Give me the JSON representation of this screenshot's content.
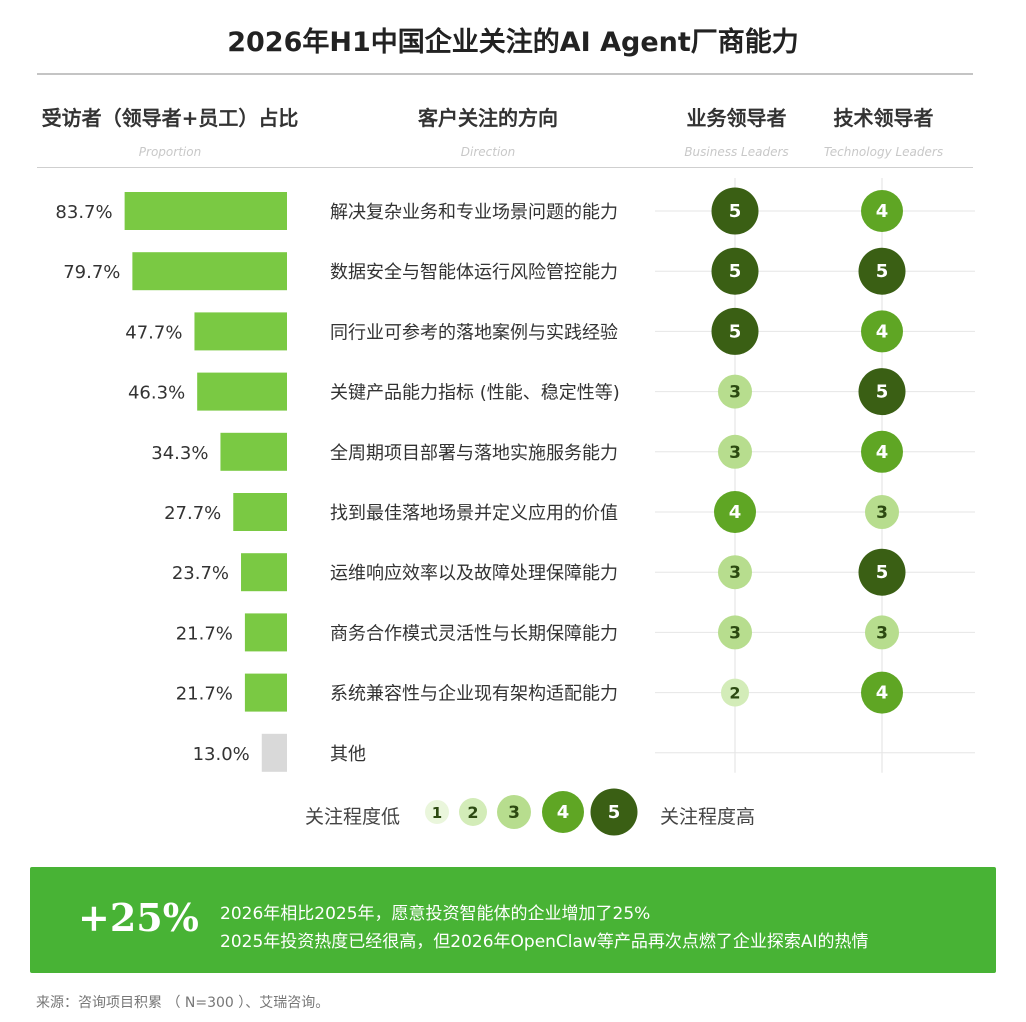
{
  "title": "2026年H1中国企业关注的AI Agent厂商能力",
  "headers": {
    "proportion": {
      "main": "受访者（领导者+员工）占比",
      "sub": "Proportion"
    },
    "direction": {
      "main": "客户关注的方向",
      "sub": "Direction"
    },
    "business": {
      "main": "业务领导者",
      "sub": "Business Leaders"
    },
    "technology": {
      "main": "技术领导者",
      "sub": "Technology Leaders"
    }
  },
  "chart_data": {
    "type": "bar",
    "orientation": "horizontal",
    "categories": [
      "解决复杂业务和专业场景问题的能力",
      "数据安全与智能体运行风险管控能力",
      "同行业可参考的落地案例与实践经验",
      "关键产品能力指标 (性能、稳定性等)",
      "全周期项目部署与落地实施服务能力",
      "找到最佳落地场景并定义应用的价值",
      "运维响应效率以及故障处理保障能力",
      "商务合作模式灵活性与长期保障能力",
      "系统兼容性与企业现有架构适配能力",
      "其他"
    ],
    "values": [
      83.7,
      79.7,
      47.7,
      46.3,
      34.3,
      27.7,
      23.7,
      21.7,
      21.7,
      13.0
    ],
    "value_labels": [
      "83.7%",
      "79.7%",
      "47.7%",
      "46.3%",
      "34.3%",
      "27.7%",
      "23.7%",
      "21.7%",
      "21.7%",
      "13.0%"
    ],
    "unit": "%",
    "bar_color": "#7ac943",
    "other_bar_color": "#d9d9d9",
    "ratings": {
      "business": [
        5,
        5,
        5,
        3,
        3,
        4,
        3,
        3,
        2,
        null
      ],
      "technology": [
        4,
        5,
        4,
        5,
        4,
        3,
        5,
        3,
        4,
        null
      ]
    },
    "rating_colors": {
      "1": "#eaf6dc",
      "2": "#d3ecb8",
      "3": "#b7dd8e",
      "4": "#5fa624",
      "5": "#3a5f14"
    }
  },
  "legend": {
    "low": "关注程度低",
    "high": "关注程度高",
    "levels": [
      1,
      2,
      3,
      4,
      5
    ]
  },
  "banner": {
    "big": "+25%",
    "line1": "2026年相比2025年，愿意投资智能体的企业增加了25%",
    "line2": "2025年投资热度已经很高，但2026年OpenClaw等产品再次点燃了企业探索AI的热情",
    "color": "#48b335"
  },
  "source": "来源：咨询项目积累 （ N=300 ）、艾瑞咨询。"
}
